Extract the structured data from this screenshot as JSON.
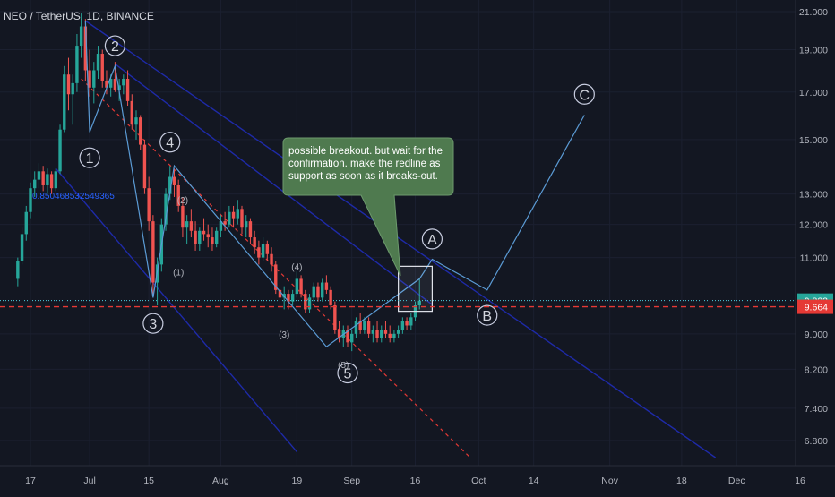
{
  "header": {
    "symbol_title": "NEO / TetherUS, 1D, BINANCE"
  },
  "colors": {
    "background": "#131722",
    "candle_up": "#26a69a",
    "candle_down": "#ef5350",
    "channel_line": "#1e2aa8",
    "wave_line": "#5b9bd5",
    "red_support": "#e53935",
    "cyan_price": "#4dd0e1",
    "callout_bg": "#4f7a4f"
  },
  "chart_data": {
    "type": "candlestick",
    "title": "NEO / TetherUS, 1D, BINANCE",
    "y_scale": "log",
    "ylim": [
      6.5,
      21.3
    ],
    "y_ticks": [
      6.8,
      7.4,
      8.2,
      9.0,
      11.0,
      12.0,
      13.0,
      15.0,
      17.0,
      19.0,
      21.0
    ],
    "y_tick_labels": [
      "6.800",
      "7.400",
      "8.200",
      "9.000",
      "11.000",
      "12.000",
      "13.000",
      "15.000",
      "17.000",
      "19.000",
      "21.000"
    ],
    "x_ticks": [
      {
        "date": "2019-06-17",
        "label": "17"
      },
      {
        "date": "2019-07-01",
        "label": "Jul"
      },
      {
        "date": "2019-07-15",
        "label": "15"
      },
      {
        "date": "2019-08-01",
        "label": "Aug"
      },
      {
        "date": "2019-08-19",
        "label": "19"
      },
      {
        "date": "2019-09-01",
        "label": "Sep"
      },
      {
        "date": "2019-09-16",
        "label": "16"
      },
      {
        "date": "2019-10-01",
        "label": "Oct"
      },
      {
        "date": "2019-10-14",
        "label": "14"
      },
      {
        "date": "2019-11-01",
        "label": "Nov"
      },
      {
        "date": "2019-11-18",
        "label": "18"
      },
      {
        "date": "2019-12-01",
        "label": "Dec"
      },
      {
        "date": "2019-12-16",
        "label": "16"
      }
    ],
    "last_price_label": "9.823",
    "support_price_label": "9.664",
    "cursor_price": 9.664,
    "last_price": 9.823,
    "candles": [
      [
        "2019-06-14",
        10.4,
        11.0,
        10.2,
        10.9
      ],
      [
        "2019-06-15",
        10.9,
        11.9,
        10.8,
        11.7
      ],
      [
        "2019-06-16",
        11.7,
        12.6,
        11.5,
        12.4
      ],
      [
        "2019-06-17",
        12.4,
        13.4,
        12.2,
        13.2
      ],
      [
        "2019-06-18",
        13.2,
        13.8,
        12.9,
        13.5
      ],
      [
        "2019-06-19",
        13.5,
        14.1,
        13.2,
        13.8
      ],
      [
        "2019-06-20",
        13.8,
        14.0,
        13.1,
        13.3
      ],
      [
        "2019-06-21",
        13.3,
        13.9,
        13.0,
        13.7
      ],
      [
        "2019-06-22",
        13.7,
        13.8,
        13.0,
        13.2
      ],
      [
        "2019-06-23",
        13.2,
        13.9,
        13.1,
        13.8
      ],
      [
        "2019-06-24",
        13.8,
        15.6,
        13.7,
        15.4
      ],
      [
        "2019-06-25",
        15.4,
        18.2,
        15.3,
        17.8
      ],
      [
        "2019-06-26",
        17.8,
        18.6,
        16.2,
        16.9
      ],
      [
        "2019-06-27",
        16.9,
        17.8,
        15.6,
        17.4
      ],
      [
        "2019-06-28",
        17.4,
        19.8,
        17.0,
        19.2
      ],
      [
        "2019-06-29",
        19.2,
        20.9,
        18.6,
        20.2
      ],
      [
        "2019-06-30",
        20.2,
        20.6,
        17.5,
        18.0
      ],
      [
        "2019-07-01",
        18.0,
        19.0,
        16.8,
        17.2
      ],
      [
        "2019-07-02",
        17.2,
        18.4,
        16.5,
        18.0
      ],
      [
        "2019-07-03",
        18.0,
        19.2,
        17.6,
        18.8
      ],
      [
        "2019-07-04",
        18.8,
        19.0,
        17.2,
        17.5
      ],
      [
        "2019-07-05",
        17.5,
        18.0,
        16.9,
        17.2
      ],
      [
        "2019-07-06",
        17.2,
        17.8,
        16.8,
        17.6
      ],
      [
        "2019-07-07",
        17.6,
        18.4,
        17.0,
        17.1
      ],
      [
        "2019-07-08",
        17.1,
        17.6,
        16.6,
        17.3
      ],
      [
        "2019-07-09",
        17.3,
        17.8,
        16.9,
        17.6
      ],
      [
        "2019-07-10",
        17.6,
        18.0,
        16.4,
        16.6
      ],
      [
        "2019-07-11",
        16.6,
        16.9,
        15.4,
        15.6
      ],
      [
        "2019-07-12",
        15.6,
        16.2,
        15.0,
        15.9
      ],
      [
        "2019-07-13",
        15.9,
        16.0,
        14.6,
        14.8
      ],
      [
        "2019-07-14",
        14.8,
        15.0,
        13.0,
        13.2
      ],
      [
        "2019-07-15",
        13.2,
        13.6,
        11.8,
        12.1
      ],
      [
        "2019-07-16",
        12.1,
        12.3,
        9.9,
        10.3
      ],
      [
        "2019-07-17",
        10.3,
        11.0,
        9.7,
        10.8
      ],
      [
        "2019-07-18",
        10.8,
        12.2,
        10.6,
        12.0
      ],
      [
        "2019-07-19",
        12.0,
        13.2,
        11.8,
        13.0
      ],
      [
        "2019-07-20",
        13.0,
        14.0,
        12.8,
        13.6
      ],
      [
        "2019-07-21",
        13.6,
        13.9,
        12.9,
        13.3
      ],
      [
        "2019-07-22",
        13.3,
        13.5,
        12.4,
        12.6
      ],
      [
        "2019-07-23",
        12.6,
        12.9,
        11.6,
        11.9
      ],
      [
        "2019-07-24",
        11.9,
        12.3,
        11.4,
        12.1
      ],
      [
        "2019-07-25",
        12.1,
        12.5,
        11.6,
        11.8
      ],
      [
        "2019-07-26",
        11.8,
        12.1,
        11.2,
        11.4
      ],
      [
        "2019-07-27",
        11.4,
        11.9,
        11.2,
        11.8
      ],
      [
        "2019-07-28",
        11.8,
        12.2,
        11.5,
        11.7
      ],
      [
        "2019-07-29",
        11.7,
        12.0,
        11.3,
        11.6
      ],
      [
        "2019-07-30",
        11.6,
        11.9,
        11.2,
        11.4
      ],
      [
        "2019-07-31",
        11.4,
        11.9,
        11.3,
        11.8
      ],
      [
        "2019-08-01",
        11.8,
        12.3,
        11.6,
        12.1
      ],
      [
        "2019-08-02",
        12.1,
        12.4,
        11.8,
        12.0
      ],
      [
        "2019-08-03",
        12.0,
        12.6,
        11.9,
        12.4
      ],
      [
        "2019-08-04",
        12.4,
        12.6,
        11.9,
        12.2
      ],
      [
        "2019-08-05",
        12.2,
        12.8,
        12.0,
        12.5
      ],
      [
        "2019-08-06",
        12.5,
        12.6,
        11.7,
        11.9
      ],
      [
        "2019-08-07",
        11.9,
        12.3,
        11.6,
        12.1
      ],
      [
        "2019-08-08",
        12.1,
        12.2,
        11.4,
        11.6
      ],
      [
        "2019-08-09",
        11.6,
        11.8,
        11.1,
        11.3
      ],
      [
        "2019-08-10",
        11.3,
        11.5,
        10.8,
        11.0
      ],
      [
        "2019-08-11",
        11.0,
        11.6,
        10.9,
        11.4
      ],
      [
        "2019-08-12",
        11.4,
        11.5,
        10.9,
        11.1
      ],
      [
        "2019-08-13",
        11.1,
        11.3,
        10.6,
        10.8
      ],
      [
        "2019-08-14",
        10.8,
        10.9,
        10.0,
        10.1
      ],
      [
        "2019-08-15",
        10.1,
        10.3,
        9.6,
        9.9
      ],
      [
        "2019-08-16",
        9.9,
        10.2,
        9.6,
        10.0
      ],
      [
        "2019-08-17",
        10.0,
        10.1,
        9.6,
        9.8
      ],
      [
        "2019-08-18",
        9.8,
        10.1,
        9.7,
        10.0
      ],
      [
        "2019-08-19",
        10.0,
        10.6,
        9.9,
        10.4
      ],
      [
        "2019-08-20",
        10.4,
        10.5,
        9.9,
        10.0
      ],
      [
        "2019-08-21",
        10.0,
        10.1,
        9.5,
        9.6
      ],
      [
        "2019-08-22",
        9.6,
        10.0,
        9.5,
        9.9
      ],
      [
        "2019-08-23",
        9.9,
        10.3,
        9.8,
        10.2
      ],
      [
        "2019-08-24",
        10.2,
        10.3,
        9.8,
        9.9
      ],
      [
        "2019-08-25",
        9.9,
        10.4,
        9.8,
        10.3
      ],
      [
        "2019-08-26",
        10.3,
        10.5,
        10.0,
        10.1
      ],
      [
        "2019-08-27",
        10.1,
        10.2,
        9.6,
        9.7
      ],
      [
        "2019-08-28",
        9.7,
        9.8,
        9.0,
        9.1
      ],
      [
        "2019-08-29",
        9.1,
        9.3,
        8.8,
        8.9
      ],
      [
        "2019-08-30",
        8.9,
        9.2,
        8.7,
        9.1
      ],
      [
        "2019-08-31",
        9.1,
        9.2,
        8.7,
        8.8
      ],
      [
        "2019-09-01",
        8.8,
        9.1,
        8.6,
        9.0
      ],
      [
        "2019-09-02",
        9.0,
        9.4,
        8.9,
        9.3
      ],
      [
        "2019-09-03",
        9.3,
        9.5,
        9.0,
        9.1
      ],
      [
        "2019-09-04",
        9.1,
        9.4,
        9.0,
        9.3
      ],
      [
        "2019-09-05",
        9.3,
        9.4,
        8.9,
        9.0
      ],
      [
        "2019-09-06",
        9.0,
        9.2,
        8.8,
        9.1
      ],
      [
        "2019-09-07",
        9.1,
        9.3,
        8.8,
        8.9
      ],
      [
        "2019-09-08",
        8.9,
        9.2,
        8.8,
        9.1
      ],
      [
        "2019-09-09",
        9.1,
        9.3,
        8.9,
        9.0
      ],
      [
        "2019-09-10",
        9.0,
        9.2,
        8.8,
        8.9
      ],
      [
        "2019-09-11",
        8.9,
        9.1,
        8.8,
        9.0
      ],
      [
        "2019-09-12",
        9.0,
        9.2,
        8.9,
        9.1
      ],
      [
        "2019-09-13",
        9.1,
        9.4,
        9.0,
        9.3
      ],
      [
        "2019-09-14",
        9.3,
        9.4,
        9.1,
        9.2
      ],
      [
        "2019-09-15",
        9.2,
        9.5,
        9.1,
        9.4
      ],
      [
        "2019-09-16",
        9.4,
        9.8,
        9.3,
        9.7
      ],
      [
        "2019-09-17",
        9.7,
        10.4,
        9.6,
        9.82
      ]
    ],
    "channel_lines": [
      {
        "from": {
          "date": "2019-06-30",
          "price": 20.5
        },
        "to": {
          "date": "2019-11-26",
          "price": 6.5
        }
      },
      {
        "from": {
          "date": "2019-06-23",
          "price": 13.9
        },
        "to": {
          "date": "2019-08-19",
          "price": 6.6
        }
      },
      {
        "from": {
          "date": "2019-07-07",
          "price": 18.3
        },
        "to": {
          "date": "2019-09-20",
          "price": 9.72
        }
      }
    ],
    "red_trendline": {
      "from": {
        "date": "2019-06-29",
        "price": 17.6
      },
      "to": {
        "date": "2019-09-29",
        "price": 6.5
      }
    },
    "wave_path": [
      {
        "date": "2019-06-30",
        "price": 20.5
      },
      {
        "date": "2019-07-01",
        "price": 15.3
      },
      {
        "date": "2019-07-07",
        "price": 18.2
      },
      {
        "date": "2019-07-16",
        "price": 9.9
      },
      {
        "date": "2019-07-21",
        "price": 14.0
      },
      {
        "date": "2019-08-26",
        "price": 8.7
      },
      {
        "date": "2019-09-17",
        "price": 10.4
      },
      {
        "date": "2019-09-20",
        "price": 10.95
      },
      {
        "date": "2019-10-03",
        "price": 10.1
      },
      {
        "date": "2019-10-26",
        "price": 16.0
      }
    ],
    "wave_labels": [
      {
        "text": "1",
        "date": "2019-07-01",
        "price": 14.3,
        "style": "circle"
      },
      {
        "text": "2",
        "date": "2019-07-07",
        "price": 19.2,
        "style": "circle"
      },
      {
        "text": "3",
        "date": "2019-07-16",
        "price": 9.25,
        "style": "circle"
      },
      {
        "text": "4",
        "date": "2019-07-20",
        "price": 14.9,
        "style": "circle"
      },
      {
        "text": "5",
        "date": "2019-08-31",
        "price": 8.12,
        "style": "circle"
      },
      {
        "text": "A",
        "date": "2019-09-20",
        "price": 11.55,
        "style": "circle"
      },
      {
        "text": "B",
        "date": "2019-10-03",
        "price": 9.45,
        "style": "circle"
      },
      {
        "text": "C",
        "date": "2019-10-26",
        "price": 16.9,
        "style": "circle"
      },
      {
        "text": "(1)",
        "date": "2019-07-22",
        "price": 10.6,
        "style": "plain"
      },
      {
        "text": "(2)",
        "date": "2019-07-23",
        "price": 12.8,
        "style": "plain"
      },
      {
        "text": "(3)",
        "date": "2019-08-16",
        "price": 9.0,
        "style": "plain"
      },
      {
        "text": "(4)",
        "date": "2019-08-19",
        "price": 10.75,
        "style": "plain"
      },
      {
        "text": "(5)",
        "date": "2019-08-30",
        "price": 8.3,
        "style": "plain"
      }
    ],
    "breakout_box": {
      "from": {
        "date": "2019-09-12",
        "price": 10.75
      },
      "to": {
        "date": "2019-09-20",
        "price": 9.55
      }
    },
    "fib_text": "0.850468532549365",
    "annotation": "possible breakout. but wait for the confirmation. make the redline as support as soon as it breaks-out."
  }
}
